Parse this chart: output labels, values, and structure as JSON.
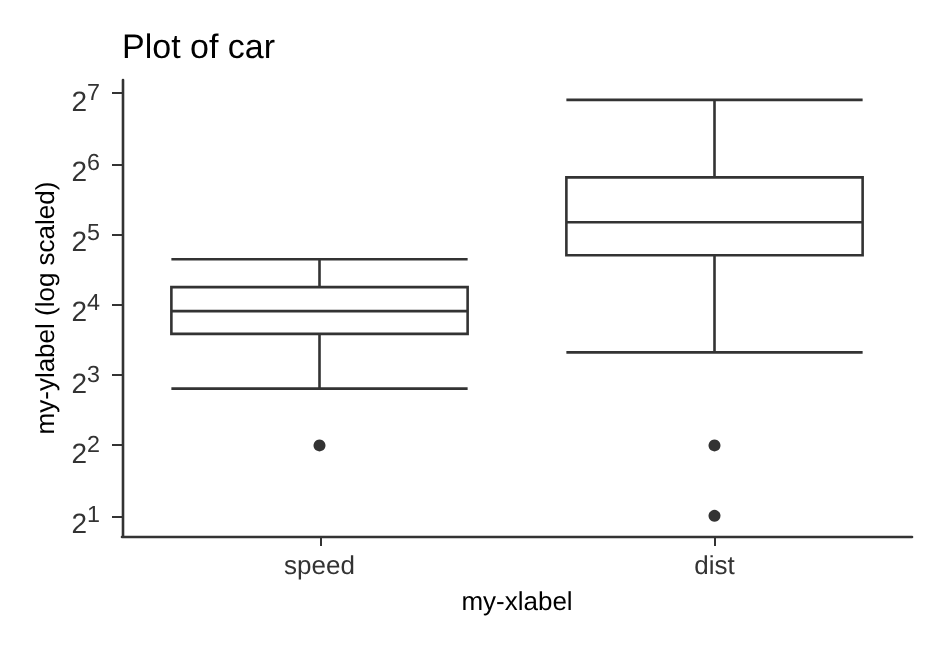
{
  "chart_data": {
    "type": "box",
    "title": "Plot of car",
    "xlabel": "my-xlabel",
    "ylabel": "my-ylabel (log scaled)",
    "categories": [
      "speed",
      "dist"
    ],
    "boxes": [
      {
        "low": 7,
        "q1": 12,
        "median": 15,
        "q3": 19,
        "high": 25,
        "outliers": [
          4
        ]
      },
      {
        "low": 10,
        "q1": 26,
        "median": 36,
        "q3": 56,
        "high": 120,
        "outliers": [
          4,
          2
        ]
      }
    ],
    "log": "y",
    "ylim": [
      1.64,
      146
    ],
    "yticks": [
      {
        "value": 2,
        "label": "2$^{1}$"
      },
      {
        "value": 4,
        "label": "2$^{2}$"
      },
      {
        "value": 8,
        "label": "2$^{3}$"
      },
      {
        "value": 16,
        "label": "2$^{4}$"
      },
      {
        "value": 32,
        "label": "2$^{5}$"
      },
      {
        "value": 64,
        "label": "2$^{6}$"
      },
      {
        "value": 128,
        "label": "2$^{7}$"
      }
    ],
    "grid": false
  }
}
